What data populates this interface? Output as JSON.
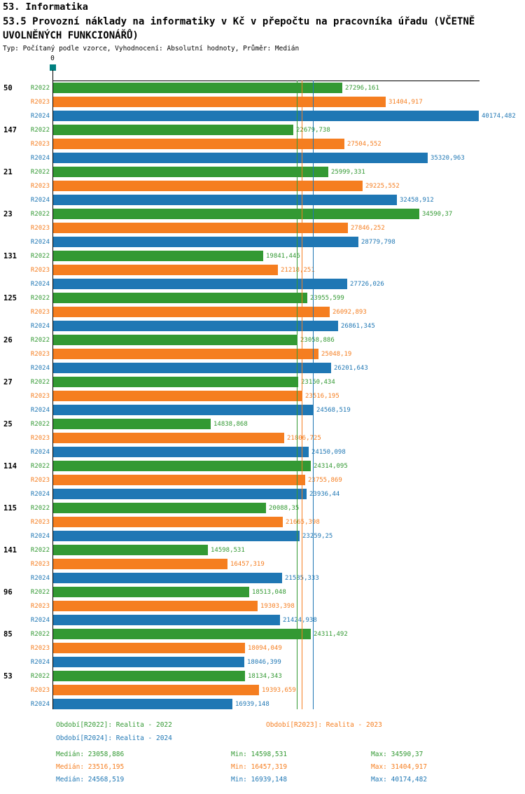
{
  "header": {
    "line1": "53. Informatika",
    "line2": "53.5 Provozní náklady na informatiky v Kč v přepočtu na pracovníka úřadu (VČETNĚ UVOLNĚNÝCH FUNKCIONÁŘŮ)",
    "line3": "Typ: Počítaný podle vzorce, Vyhodnocení: Absolutní hodnoty, Průměr: Medián"
  },
  "chart_data": {
    "type": "bar",
    "orientation": "horizontal",
    "title": "53.5 Provozní náklady na informatiky v Kč v přepočtu na pracovníka úřadu (VČETNĚ UVOLNĚNÝCH FUNKCIONÁŘŮ)",
    "value_axis": {
      "zero_label": "0",
      "max_value": 40174.482
    },
    "origin_marker_color": "#008080",
    "legend_position": "bottom",
    "series": [
      {
        "name": "R2022",
        "color": "#339933",
        "legend_label": "Období[R2022]: Realita - 2022",
        "median": "23058,886",
        "median_label": "Medián: 23058,886",
        "min_label": "Min: 14598,531",
        "max_label": "Max: 34590,37"
      },
      {
        "name": "R2023",
        "color": "#F57E20",
        "legend_label": "Období[R2023]: Realita - 2023",
        "median": "23516,195",
        "median_label": "Medián: 23516,195",
        "min_label": "Min: 16457,319",
        "max_label": "Max: 31404,917"
      },
      {
        "name": "R2024",
        "color": "#1F77B4",
        "legend_label": "Období[R2024]: Realita - 2024",
        "median": "24568,519",
        "median_label": "Medián: 24568,519",
        "min_label": "Min: 16939,148",
        "max_label": "Max: 40174,482"
      }
    ],
    "groups": [
      {
        "id": "50",
        "values": [
          "27296,161",
          "31404,917",
          "40174,482"
        ]
      },
      {
        "id": "147",
        "values": [
          "22679,738",
          "27504,552",
          "35320,963"
        ]
      },
      {
        "id": "21",
        "values": [
          "25999,331",
          "29225,552",
          "32458,912"
        ]
      },
      {
        "id": "23",
        "values": [
          "34590,37",
          "27846,252",
          "28779,798"
        ]
      },
      {
        "id": "131",
        "values": [
          "19841,446",
          "21218,251",
          "27726,026"
        ]
      },
      {
        "id": "125",
        "values": [
          "23955,599",
          "26092,893",
          "26861,345"
        ]
      },
      {
        "id": "26",
        "values": [
          "23058,886",
          "25048,19",
          "26201,643"
        ]
      },
      {
        "id": "27",
        "values": [
          "23150,434",
          "23516,195",
          "24568,519"
        ]
      },
      {
        "id": "25",
        "values": [
          "14838,868",
          "21806,725",
          "24150,098"
        ]
      },
      {
        "id": "114",
        "values": [
          "24314,095",
          "23755,869",
          "23936,44"
        ]
      },
      {
        "id": "115",
        "values": [
          "20088,35",
          "21665,398",
          "23259,25"
        ]
      },
      {
        "id": "141",
        "values": [
          "14598,531",
          "16457,319",
          "21585,333"
        ]
      },
      {
        "id": "96",
        "values": [
          "18513,048",
          "19303,398",
          "21424,938"
        ]
      },
      {
        "id": "85",
        "values": [
          "24311,492",
          "18094,049",
          "18046,399"
        ]
      },
      {
        "id": "53",
        "values": [
          "18134,343",
          "19393,659",
          "16939,148"
        ]
      }
    ]
  }
}
